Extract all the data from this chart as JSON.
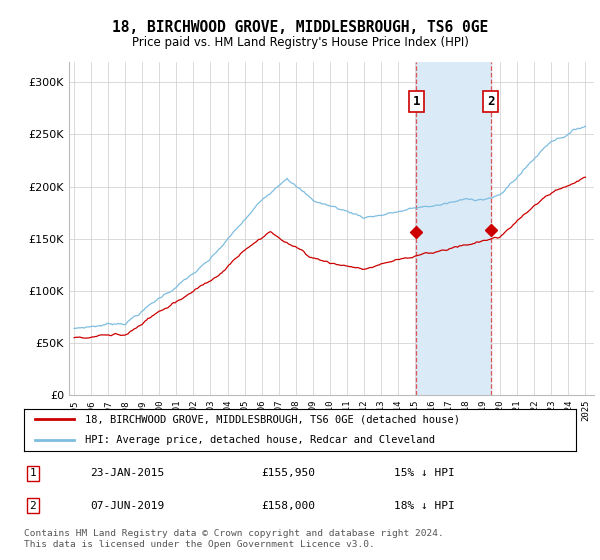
{
  "title": "18, BIRCHWOOD GROVE, MIDDLESBROUGH, TS6 0GE",
  "subtitle": "Price paid vs. HM Land Registry's House Price Index (HPI)",
  "legend_line1": "18, BIRCHWOOD GROVE, MIDDLESBROUGH, TS6 0GE (detached house)",
  "legend_line2": "HPI: Average price, detached house, Redcar and Cleveland",
  "transaction1_date": "23-JAN-2015",
  "transaction1_price": "£155,950",
  "transaction1_hpi": "15% ↓ HPI",
  "transaction2_date": "07-JUN-2019",
  "transaction2_price": "£158,000",
  "transaction2_hpi": "18% ↓ HPI",
  "footer": "Contains HM Land Registry data © Crown copyright and database right 2024.\nThis data is licensed under the Open Government Licence v3.0.",
  "hpi_color": "#7fbde0",
  "price_color": "#cc0000",
  "shade_color": "#daeaf7",
  "vline_color": "#dd4444",
  "ylim": [
    0,
    320000
  ],
  "yticks": [
    0,
    50000,
    100000,
    150000,
    200000,
    250000,
    300000
  ],
  "point1_x": 2015.07,
  "point1_y": 155950,
  "point2_x": 2019.44,
  "point2_y": 158000,
  "xmin": 1995,
  "xmax": 2025
}
